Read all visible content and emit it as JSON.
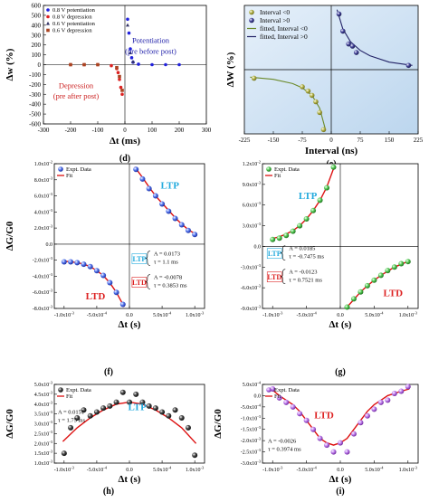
{
  "chart_data": [
    {
      "panel": "(d)",
      "type": "scatter",
      "xlabel": "Δt (ms)",
      "ylabel": "Δw (%)",
      "xlim": [
        -300,
        300
      ],
      "ylim": [
        -600,
        600
      ],
      "xticks": [
        "-300",
        "-200",
        "-100",
        "0",
        "100",
        "200",
        "300"
      ],
      "yticks": [
        "-600",
        "-500",
        "-400",
        "-300",
        "-200",
        "-100",
        "0",
        "100",
        "200",
        "300",
        "400",
        "500",
        "600"
      ],
      "legend": "top-left",
      "annotations": [
        {
          "line1": "Potentiation",
          "line2": "(pre before post)",
          "color": "#2222aa"
        },
        {
          "line1": "Depression",
          "line2": "(pre after post)",
          "color": "#cc2222"
        }
      ],
      "series": [
        {
          "name": "0.8 V potentiation",
          "marker": "circle",
          "color": "#2222dd",
          "x": [
            10,
            15,
            20,
            25,
            30,
            50,
            100,
            150,
            200
          ],
          "y": [
            460,
            320,
            160,
            70,
            25,
            5,
            0,
            0,
            0
          ]
        },
        {
          "name": "0.8 V depression",
          "marker": "circle",
          "color": "#dd2222",
          "x": [
            -10,
            -15,
            -20,
            -25,
            -30,
            -50,
            -100,
            -150,
            -200
          ],
          "y": [
            -300,
            -230,
            -150,
            -80,
            -40,
            -10,
            0,
            0,
            0
          ]
        },
        {
          "name": "0.6 V potentiation",
          "marker": "triangle",
          "color": "#333366",
          "x": [
            10,
            20,
            30
          ],
          "y": [
            400,
            120,
            30
          ]
        },
        {
          "name": "0.6 V depression",
          "marker": "square",
          "color": "#aa4422",
          "x": [
            -10,
            -20,
            -30,
            -100,
            -150,
            -200
          ],
          "y": [
            -260,
            -120,
            -30,
            0,
            0,
            0
          ]
        }
      ]
    },
    {
      "panel": "(e)",
      "type": "scatter",
      "xlabel": "Interval (ns)",
      "ylabel": "ΔW (%)",
      "xlim": [
        -225,
        225
      ],
      "xticks": [
        "-225",
        "-150",
        "-75",
        "0",
        "75",
        "150",
        "225"
      ],
      "legend": "top-left",
      "series": [
        {
          "name": "Interval <0",
          "marker": "circle",
          "color": "#a3a33a",
          "x": [
            -200,
            -75,
            -60,
            -50,
            -40,
            -30,
            -20
          ],
          "y": [
            -4,
            -8,
            -10,
            -12,
            -15,
            -20,
            -28
          ]
        },
        {
          "name": "Interval >0",
          "marker": "circle",
          "color": "#333388",
          "x": [
            20,
            30,
            45,
            55,
            65,
            200
          ],
          "y": [
            26,
            18,
            12,
            11,
            8,
            2
          ]
        },
        {
          "name": "fitted, Interval <0",
          "line": true,
          "color": "#6b8a2a",
          "x": [
            -210,
            -150,
            -100,
            -75,
            -50,
            -30,
            -15
          ],
          "y": [
            -3.5,
            -4.5,
            -6.5,
            -8.5,
            -12,
            -18,
            -28
          ]
        },
        {
          "name": "fitted, Interval >0",
          "line": true,
          "color": "#222266",
          "x": [
            15,
            30,
            50,
            75,
            100,
            150,
            210
          ],
          "y": [
            28,
            19,
            13,
            9,
            6.5,
            3.5,
            2
          ]
        }
      ]
    },
    {
      "panel": "(f)",
      "type": "scatter",
      "xlabel": "Δt (s)",
      "ylabel": "ΔG/G0",
      "xlim": [
        -0.00115,
        0.00115
      ],
      "ylim": [
        -0.008,
        0.01
      ],
      "xticks": [
        {
          "v": -0.001,
          "m": "-1.0x10",
          "e": "-3"
        },
        {
          "v": -0.0005,
          "m": "-5.0x10",
          "e": "-4"
        },
        {
          "v": 0,
          "m": "0.0",
          "e": ""
        },
        {
          "v": 0.0005,
          "m": "5.0x10",
          "e": "-4"
        },
        {
          "v": 0.001,
          "m": "1.0x10",
          "e": "-3"
        }
      ],
      "yticks": [
        {
          "v": 0.01,
          "m": "1.0x10",
          "e": "-2"
        },
        {
          "v": 0.008,
          "m": "8.0x10",
          "e": "-3"
        },
        {
          "v": 0.006,
          "m": "6.0x10",
          "e": "-3"
        },
        {
          "v": 0.004,
          "m": "4.0x10",
          "e": "-3"
        },
        {
          "v": 0.002,
          "m": "2.0x10",
          "e": "-3"
        },
        {
          "v": 0,
          "m": "0.0",
          "e": ""
        },
        {
          "v": -0.002,
          "m": "-2.0x10",
          "e": "-3"
        },
        {
          "v": -0.004,
          "m": "-4.0x10",
          "e": "-3"
        },
        {
          "v": -0.006,
          "m": "-6.0x10",
          "e": "-3"
        },
        {
          "v": -0.008,
          "m": "-8.0x10",
          "e": "-3"
        }
      ],
      "legend": "top-left",
      "legend_entries": [
        "Expt. Data",
        "Fit"
      ],
      "marker_color": "#3355dd",
      "labels": {
        "upper": "LTP",
        "lower": "LTD"
      },
      "box": [
        {
          "name": "LTP",
          "A": "A = 0.0173",
          "tau": "τ = 1.1 ms"
        },
        {
          "name": "LTD",
          "A": "A = -0.0078",
          "tau": "τ = 0.3853 ms"
        }
      ],
      "series": [
        {
          "name": "LTP data",
          "x": [
            0.0001,
            0.0002,
            0.0003,
            0.0004,
            0.0005,
            0.0006,
            0.0007,
            0.0008,
            0.0009,
            0.001
          ],
          "y": [
            0.0093,
            0.0081,
            0.0069,
            0.006,
            0.005,
            0.0041,
            0.0032,
            0.0024,
            0.0017,
            0.0012
          ]
        },
        {
          "name": "LTD data",
          "x": [
            -0.001,
            -0.0009,
            -0.0008,
            -0.0007,
            -0.0006,
            -0.0005,
            -0.0004,
            -0.0003,
            -0.0002,
            -0.0001
          ],
          "y": [
            -0.0022,
            -0.0022,
            -0.0023,
            -0.0025,
            -0.0028,
            -0.0033,
            -0.0039,
            -0.0048,
            -0.006,
            -0.0075
          ]
        },
        {
          "name": "LTP fit",
          "line": true,
          "x": [
            8e-05,
            0.0002,
            0.0003,
            0.0004,
            0.0005,
            0.0006,
            0.0007,
            0.0008,
            0.0009,
            0.00102
          ],
          "y": [
            0.0096,
            0.0083,
            0.0071,
            0.006,
            0.0051,
            0.0042,
            0.0033,
            0.0025,
            0.0018,
            0.0012
          ]
        },
        {
          "name": "LTD fit",
          "line": true,
          "x": [
            -0.00102,
            -0.0009,
            -0.0008,
            -0.0007,
            -0.0006,
            -0.0005,
            -0.0004,
            -0.0003,
            -0.0002,
            -8e-05
          ],
          "y": [
            -0.0021,
            -0.0022,
            -0.0023,
            -0.0025,
            -0.0028,
            -0.0033,
            -0.0039,
            -0.0048,
            -0.006,
            -0.0078
          ]
        }
      ]
    },
    {
      "panel": "(g)",
      "type": "scatter",
      "xlabel": "Δt (s)",
      "ylabel": "",
      "xlim": [
        -0.00115,
        0.00115
      ],
      "ylim": [
        -0.009,
        0.012
      ],
      "xticks": [
        {
          "v": -0.001,
          "m": "-1.0x10",
          "e": "-3"
        },
        {
          "v": -0.0005,
          "m": "-5.0x10",
          "e": "-4"
        },
        {
          "v": 0,
          "m": "0.0",
          "e": ""
        },
        {
          "v": 0.0005,
          "m": "5.0x10",
          "e": "-4"
        },
        {
          "v": 0.001,
          "m": "1.0x10",
          "e": "-3"
        }
      ],
      "yticks": [
        {
          "v": 0.012,
          "m": "1.2x10",
          "e": "-2"
        },
        {
          "v": 0.009,
          "m": "9.0x10",
          "e": "-3"
        },
        {
          "v": 0.006,
          "m": "6.0x10",
          "e": "-3"
        },
        {
          "v": 0.003,
          "m": "3.0x10",
          "e": "-3"
        },
        {
          "v": 0,
          "m": "0.0",
          "e": ""
        },
        {
          "v": -0.003,
          "m": "-3.0x10",
          "e": "-3"
        },
        {
          "v": -0.006,
          "m": "-6.0x10",
          "e": "-3"
        },
        {
          "v": -0.009,
          "m": "-9.0x10",
          "e": "-3"
        }
      ],
      "legend": "top-left",
      "legend_entries": [
        "Expt. Data",
        "Fit"
      ],
      "marker_color": "#33aa33",
      "labels": {
        "upper": "LTP",
        "lower": "LTD"
      },
      "box": [
        {
          "name": "LTP",
          "A": "A = 0.0185",
          "tau": "τ = -0.7475 ms"
        },
        {
          "name": "LTD",
          "A": "A = -0.0123",
          "tau": "τ = 0.7521 ms"
        }
      ],
      "series": [
        {
          "name": "LTP data",
          "x": [
            -0.001,
            -0.0009,
            -0.0008,
            -0.0007,
            -0.0006,
            -0.0005,
            -0.0004,
            -0.0003,
            -0.0002,
            -0.0001
          ],
          "y": [
            0.001,
            0.0012,
            0.0016,
            0.0022,
            0.003,
            0.004,
            0.0052,
            0.0067,
            0.0085,
            0.0115
          ]
        },
        {
          "name": "LTD data",
          "x": [
            0.0001,
            0.0002,
            0.0003,
            0.0004,
            0.0005,
            0.0006,
            0.0007,
            0.0008,
            0.0009,
            0.001
          ],
          "y": [
            -0.0088,
            -0.0076,
            -0.0066,
            -0.0057,
            -0.0049,
            -0.0042,
            -0.0035,
            -0.003,
            -0.0025,
            -0.0022
          ]
        },
        {
          "name": "LTP fit",
          "line": true,
          "x": [
            -0.00102,
            -0.0009,
            -0.0008,
            -0.0007,
            -0.0006,
            -0.0005,
            -0.0004,
            -0.0003,
            -0.0002,
            -8e-05
          ],
          "y": [
            0.0011,
            0.0014,
            0.0018,
            0.0023,
            0.003,
            0.004,
            0.0052,
            0.0067,
            0.0086,
            0.0118
          ]
        },
        {
          "name": "LTD fit",
          "line": true,
          "x": [
            8e-05,
            0.0002,
            0.0003,
            0.0004,
            0.0005,
            0.0006,
            0.0007,
            0.0008,
            0.0009,
            0.00102
          ],
          "y": [
            -0.009,
            -0.0077,
            -0.0066,
            -0.0057,
            -0.0049,
            -0.0042,
            -0.0036,
            -0.003,
            -0.0026,
            -0.0021
          ]
        }
      ]
    },
    {
      "panel": "(h)",
      "type": "scatter",
      "xlabel": "Δt (s)",
      "ylabel": "ΔG/G0",
      "xlim": [
        -0.00115,
        0.00115
      ],
      "ylim": [
        0.001,
        0.005
      ],
      "xticks": [
        {
          "v": -0.001,
          "m": "-1.0x10",
          "e": "-3"
        },
        {
          "v": -0.0005,
          "m": "-5.0x10",
          "e": "-4"
        },
        {
          "v": 0,
          "m": "0.0",
          "e": ""
        },
        {
          "v": 0.0005,
          "m": "5.0x10",
          "e": "-4"
        },
        {
          "v": 0.001,
          "m": "1.0x10",
          "e": "-3"
        }
      ],
      "yticks": [
        {
          "v": 0.005,
          "m": "5.0x10",
          "e": "-3"
        },
        {
          "v": 0.0045,
          "m": "4.5x10",
          "e": "-3"
        },
        {
          "v": 0.004,
          "m": "4.0x10",
          "e": "-3"
        },
        {
          "v": 0.0035,
          "m": "3.5x10",
          "e": "-3"
        },
        {
          "v": 0.003,
          "m": "3.0x10",
          "e": "-3"
        },
        {
          "v": 0.0025,
          "m": "2.5x10",
          "e": "-3"
        },
        {
          "v": 0.002,
          "m": "2.0x10",
          "e": "-3"
        },
        {
          "v": 0.0015,
          "m": "1.5x10",
          "e": "-3"
        },
        {
          "v": 0.001,
          "m": "1.0x10",
          "e": "-3"
        }
      ],
      "legend": "top-left",
      "legend_entries": [
        "Expt. Data",
        "Fit"
      ],
      "marker_color": "#222222",
      "label": "LTP",
      "params": {
        "A": "A = 0.0151",
        "tau": "τ = 1.75 ms"
      },
      "series": [
        {
          "name": "data",
          "x": [
            -0.001,
            -0.0009,
            -0.0008,
            -0.0007,
            -0.0006,
            -0.0005,
            -0.0004,
            -0.0003,
            -0.0002,
            -0.0001,
            0,
            0.0001,
            0.0002,
            0.0003,
            0.0004,
            0.0005,
            0.0006,
            0.0007,
            0.0008,
            0.0009,
            0.001
          ],
          "y": [
            0.0015,
            0.0028,
            0.0033,
            0.0037,
            0.0034,
            0.0036,
            0.0038,
            0.0039,
            0.0041,
            0.0046,
            0.0041,
            0.0045,
            0.0041,
            0.0039,
            0.0038,
            0.0036,
            0.0034,
            0.0037,
            0.0033,
            0.0028,
            0.0014
          ]
        },
        {
          "name": "fit",
          "line": true,
          "x": [
            -0.00102,
            -0.0008,
            -0.0006,
            -0.0004,
            -0.0002,
            0,
            0.0002,
            0.0004,
            0.0006,
            0.0008,
            0.00102
          ],
          "y": [
            0.0021,
            0.0028,
            0.0033,
            0.0037,
            0.004,
            0.0041,
            0.004,
            0.0037,
            0.0033,
            0.0028,
            0.002
          ]
        }
      ]
    },
    {
      "panel": "(i)",
      "type": "scatter",
      "xlabel": "Δt (s)",
      "ylabel": "ΔG/G0",
      "xlim": [
        -0.00115,
        0.00115
      ],
      "ylim": [
        -0.003,
        0.0005
      ],
      "xticks": [
        {
          "v": -0.001,
          "m": "-1.0x10",
          "e": "-3"
        },
        {
          "v": -0.0005,
          "m": "-5.0x10",
          "e": "-4"
        },
        {
          "v": 0,
          "m": "0.0",
          "e": ""
        },
        {
          "v": 0.0005,
          "m": "5.0x10",
          "e": "-4"
        },
        {
          "v": 0.001,
          "m": "1.0x10",
          "e": "-3"
        }
      ],
      "yticks": [
        {
          "v": 0.0005,
          "m": "5.0x10",
          "e": "-4"
        },
        {
          "v": 0,
          "m": "0.0",
          "e": ""
        },
        {
          "v": -0.0005,
          "m": "-5.0x10",
          "e": "-4"
        },
        {
          "v": -0.001,
          "m": "-1.0x10",
          "e": "-3"
        },
        {
          "v": -0.0015,
          "m": "-1.5x10",
          "e": "-3"
        },
        {
          "v": -0.002,
          "m": "-2.0x10",
          "e": "-3"
        },
        {
          "v": -0.0025,
          "m": "-2.5x10",
          "e": "-3"
        },
        {
          "v": -0.003,
          "m": "-3.0x10",
          "e": "-3"
        }
      ],
      "legend": "top-left",
      "legend_entries": [
        "Expt. Data",
        "Fit"
      ],
      "marker_color": "#aa55dd",
      "label": "LTD",
      "params": {
        "A": "A = -0.0026",
        "tau": "τ = 0.3974 ms"
      },
      "series": [
        {
          "name": "data",
          "x": [
            -0.001,
            -0.0009,
            -0.0008,
            -0.0007,
            -0.0006,
            -0.0005,
            -0.0004,
            -0.0003,
            -0.0002,
            -0.0001,
            0,
            0.0001,
            0.0002,
            0.0003,
            0.0004,
            0.0005,
            0.0006,
            0.0007,
            0.0008,
            0.0009,
            0.001
          ],
          "y": [
            0.0003,
            -0.0001,
            -0.0003,
            -0.0005,
            -0.0008,
            -0.0011,
            -0.0015,
            -0.0019,
            -0.0022,
            -0.0025,
            -0.0021,
            -0.0025,
            -0.0017,
            -0.0012,
            -0.0009,
            -0.0006,
            -0.0003,
            -0.0002,
            0.0001,
            0.0002,
            0.0004
          ]
        },
        {
          "name": "fit",
          "line": true,
          "x": [
            -0.00102,
            -0.0009,
            -0.0008,
            -0.0007,
            -0.0006,
            -0.0005,
            -0.0004,
            -0.0003,
            -0.0002,
            -0.0001,
            0,
            0.0001,
            0.0002,
            0.0003,
            0.0004,
            0.0005,
            0.0006,
            0.0007,
            0.0008,
            0.0009,
            0.00102
          ],
          "y": [
            0.0003,
            0,
            -0.0002,
            -0.0004,
            -0.0007,
            -0.0011,
            -0.0015,
            -0.0019,
            -0.0021,
            -0.0022,
            -0.0021,
            -0.0019,
            -0.0015,
            -0.0011,
            -0.0007,
            -0.0004,
            -0.0002,
            0,
            0.0001,
            0.0002,
            0.0003
          ]
        }
      ]
    }
  ]
}
